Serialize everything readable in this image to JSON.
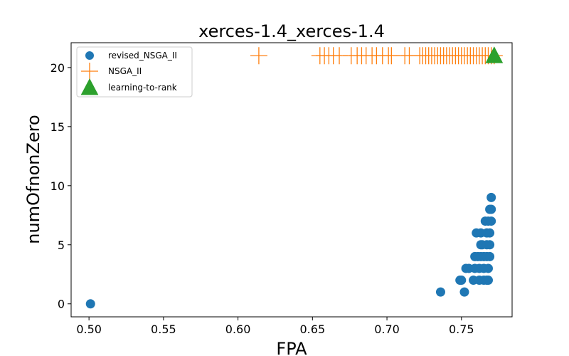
{
  "chart_data": {
    "type": "scatter",
    "title": "xerces-1.4_xerces-1.4",
    "xlabel": "FPA",
    "ylabel": "numOfnonZero",
    "xlim": [
      0.488,
      0.784
    ],
    "ylim": [
      -1.1,
      22.1
    ],
    "xticks": [
      0.5,
      0.55,
      0.6,
      0.65,
      0.7,
      0.75
    ],
    "xtick_labels": [
      "0.50",
      "0.55",
      "0.60",
      "0.65",
      "0.70",
      "0.75"
    ],
    "yticks": [
      0,
      5,
      10,
      15,
      20
    ],
    "ytick_labels": [
      "0",
      "5",
      "10",
      "15",
      "20"
    ],
    "grid": false,
    "legend_position": "top-left",
    "series": [
      {
        "name": "revised_NSGA_II",
        "marker": "circle",
        "color": "#1f77b4",
        "points": [
          [
            0.501,
            0
          ],
          [
            0.736,
            1
          ],
          [
            0.752,
            1
          ],
          [
            0.749,
            2
          ],
          [
            0.75,
            2
          ],
          [
            0.758,
            2
          ],
          [
            0.762,
            2
          ],
          [
            0.765,
            2
          ],
          [
            0.767,
            2
          ],
          [
            0.768,
            2
          ],
          [
            0.753,
            3
          ],
          [
            0.755,
            3
          ],
          [
            0.759,
            3
          ],
          [
            0.762,
            3
          ],
          [
            0.765,
            3
          ],
          [
            0.768,
            3
          ],
          [
            0.759,
            4
          ],
          [
            0.761,
            4
          ],
          [
            0.763,
            4
          ],
          [
            0.765,
            4
          ],
          [
            0.767,
            4
          ],
          [
            0.769,
            4
          ],
          [
            0.763,
            5
          ],
          [
            0.764,
            5
          ],
          [
            0.767,
            5
          ],
          [
            0.769,
            5
          ],
          [
            0.76,
            6
          ],
          [
            0.763,
            6
          ],
          [
            0.767,
            6
          ],
          [
            0.769,
            6
          ],
          [
            0.766,
            7
          ],
          [
            0.768,
            7
          ],
          [
            0.77,
            7
          ],
          [
            0.769,
            8
          ],
          [
            0.77,
            8
          ],
          [
            0.77,
            9
          ]
        ]
      },
      {
        "name": "NSGA_II",
        "marker": "plus",
        "color": "#ff7f0e",
        "points": [
          [
            0.614,
            21
          ],
          [
            0.655,
            21
          ],
          [
            0.658,
            21
          ],
          [
            0.661,
            21
          ],
          [
            0.664,
            21
          ],
          [
            0.668,
            21
          ],
          [
            0.676,
            21
          ],
          [
            0.68,
            21
          ],
          [
            0.683,
            21
          ],
          [
            0.686,
            21
          ],
          [
            0.69,
            21
          ],
          [
            0.693,
            21
          ],
          [
            0.697,
            21
          ],
          [
            0.701,
            21
          ],
          [
            0.703,
            21
          ],
          [
            0.712,
            21
          ],
          [
            0.715,
            21
          ],
          [
            0.722,
            21
          ],
          [
            0.724,
            21
          ],
          [
            0.726,
            21
          ],
          [
            0.728,
            21
          ],
          [
            0.73,
            21
          ],
          [
            0.732,
            21
          ],
          [
            0.734,
            21
          ],
          [
            0.736,
            21
          ],
          [
            0.738,
            21
          ],
          [
            0.74,
            21
          ],
          [
            0.742,
            21
          ],
          [
            0.744,
            21
          ],
          [
            0.746,
            21
          ],
          [
            0.748,
            21
          ],
          [
            0.75,
            21
          ],
          [
            0.752,
            21
          ],
          [
            0.754,
            21
          ],
          [
            0.756,
            21
          ],
          [
            0.758,
            21
          ],
          [
            0.76,
            21
          ],
          [
            0.762,
            21
          ],
          [
            0.764,
            21
          ],
          [
            0.766,
            21
          ],
          [
            0.768,
            21
          ],
          [
            0.77,
            21
          ],
          [
            0.772,
            21
          ]
        ]
      },
      {
        "name": "learning-to-rank",
        "marker": "triangle",
        "color": "#2ca02c",
        "points": [
          [
            0.772,
            21
          ]
        ]
      }
    ]
  }
}
